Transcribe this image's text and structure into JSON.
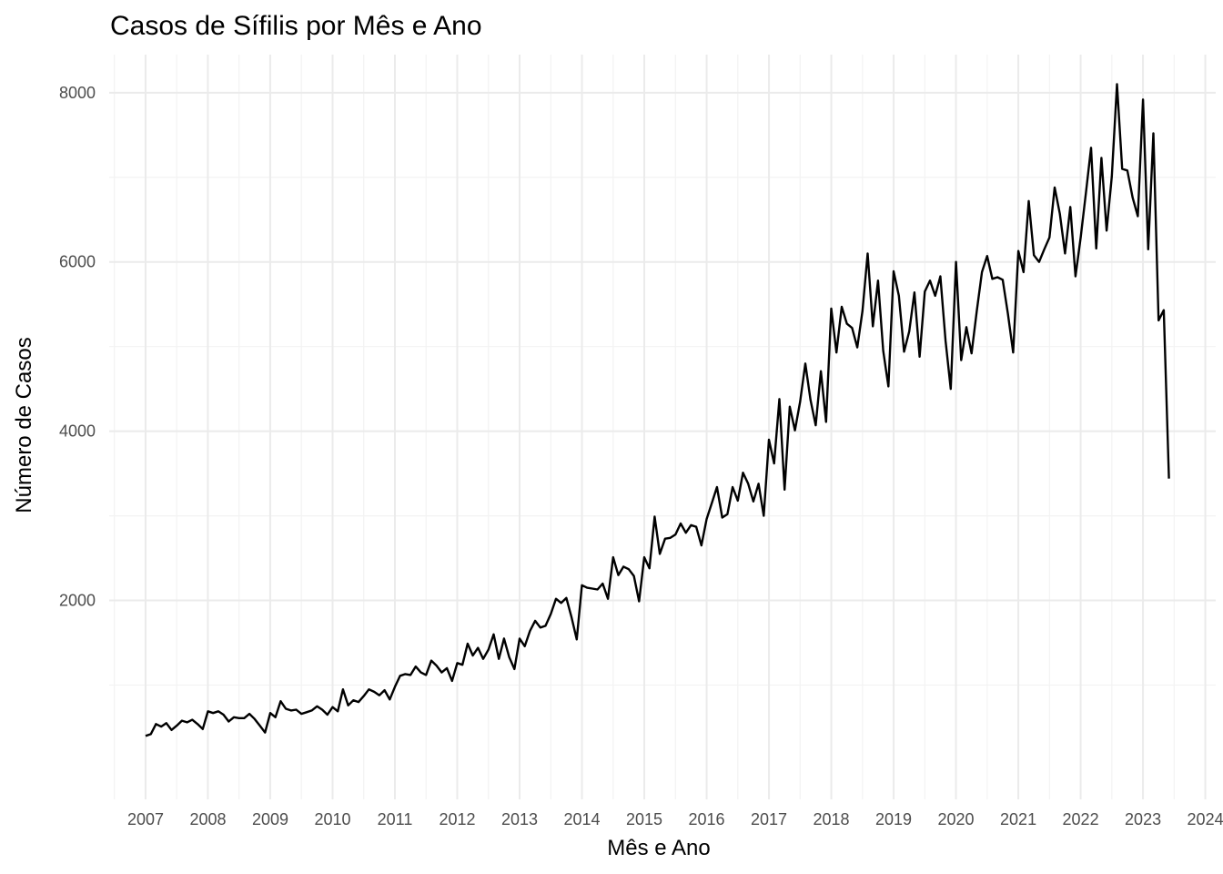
{
  "chart_data": {
    "type": "line",
    "title": "Casos de Sífilis por Mês e Ano",
    "xlabel": "Mês e Ano",
    "ylabel": "Número de Casos",
    "x_start": "2007-01",
    "x_ticks": [
      "2007",
      "2008",
      "2009",
      "2010",
      "2011",
      "2012",
      "2013",
      "2014",
      "2015",
      "2016",
      "2017",
      "2018",
      "2019",
      "2020",
      "2021",
      "2022",
      "2023",
      "2024"
    ],
    "y_ticks": [
      2000,
      4000,
      6000,
      8000
    ],
    "xlim": [
      "2006-06",
      "2024-03"
    ],
    "ylim": [
      -350,
      8450
    ],
    "grid": true,
    "legend": "none",
    "colors": {
      "line": "#000000",
      "grid": "#ebebeb",
      "tick": "#4d4d4d"
    },
    "series": [
      {
        "values": [
          400,
          420,
          540,
          510,
          550,
          470,
          520,
          580,
          560,
          590,
          540,
          480,
          690,
          670,
          690,
          650,
          570,
          620,
          610,
          610,
          660,
          600,
          520,
          440,
          670,
          620,
          810,
          720,
          700,
          710,
          660,
          680,
          700,
          750,
          710,
          650,
          740,
          690,
          950,
          760,
          820,
          800,
          870,
          950,
          920,
          880,
          940,
          830,
          980,
          1110,
          1130,
          1120,
          1220,
          1150,
          1120,
          1290,
          1230,
          1150,
          1200,
          1050,
          1260,
          1240,
          1490,
          1350,
          1440,
          1310,
          1420,
          1600,
          1310,
          1550,
          1330,
          1190,
          1550,
          1460,
          1640,
          1760,
          1680,
          1700,
          1840,
          2020,
          1970,
          2030,
          1800,
          1540,
          2180,
          2150,
          2140,
          2130,
          2200,
          2020,
          2510,
          2300,
          2400,
          2370,
          2290,
          1990,
          2510,
          2380,
          2990,
          2550,
          2730,
          2740,
          2780,
          2910,
          2800,
          2890,
          2870,
          2650,
          2960,
          3150,
          3340,
          2980,
          3020,
          3340,
          3180,
          3510,
          3380,
          3170,
          3380,
          3000,
          3900,
          3620,
          4380,
          3310,
          4290,
          4010,
          4350,
          4800,
          4370,
          4070,
          4710,
          4110,
          5450,
          4930,
          5470,
          5270,
          5220,
          4990,
          5420,
          6100,
          5240,
          5780,
          4950,
          4530,
          5890,
          5600,
          4940,
          5180,
          5640,
          4880,
          5650,
          5780,
          5600,
          5830,
          5070,
          4500,
          6000,
          4840,
          5230,
          4920,
          5420,
          5880,
          6070,
          5800,
          5820,
          5790,
          5390,
          4930,
          6130,
          5880,
          6720,
          6080,
          6000,
          6150,
          6290,
          6880,
          6570,
          6100,
          6650,
          5830,
          6290,
          6810,
          7350,
          6160,
          7230,
          6370,
          7010,
          8100,
          7100,
          7080,
          6760,
          6540,
          7920,
          6150,
          7520,
          5310,
          5430,
          3440
        ]
      }
    ]
  }
}
